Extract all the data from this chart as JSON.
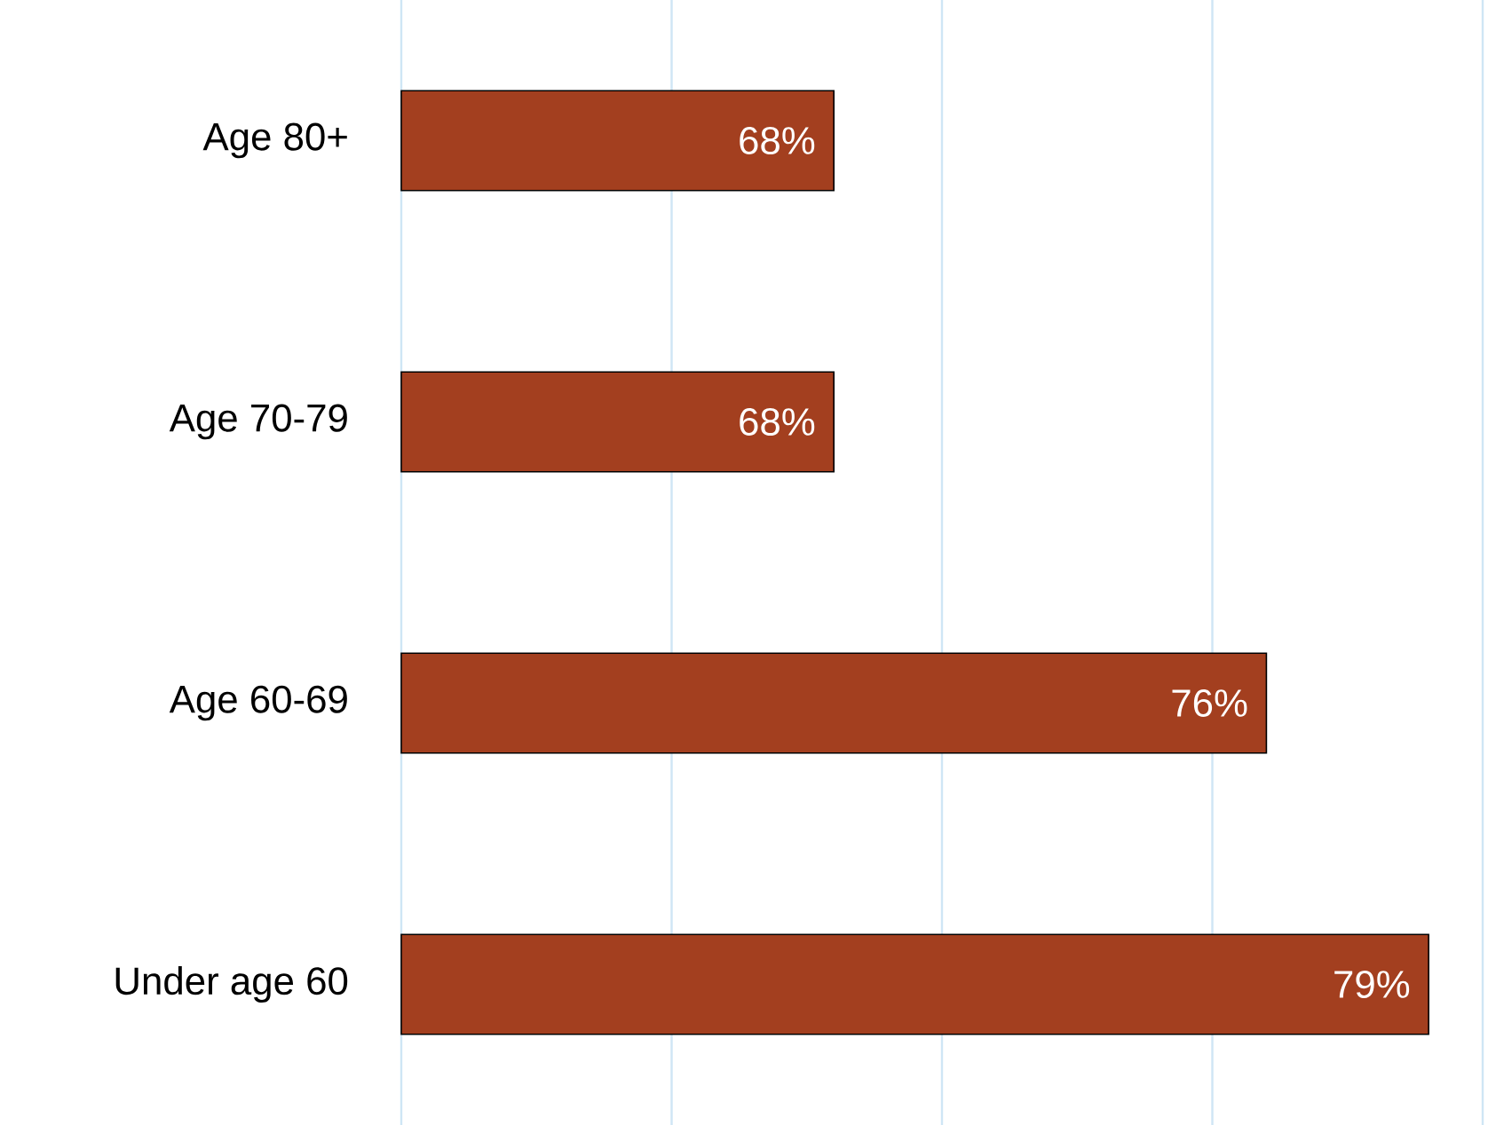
{
  "chart_data": {
    "type": "bar",
    "orientation": "horizontal",
    "categories": [
      "Age 80+",
      "Age 70-79",
      "Age 60-69",
      "Under age 60"
    ],
    "values": [
      68,
      68,
      76,
      79
    ],
    "value_labels": [
      "68%",
      "68%",
      "76%",
      "79%"
    ],
    "color": "#a33f1f",
    "xlim": [
      60,
      80
    ],
    "xticks": [
      {
        "value": 60,
        "label": null
      },
      {
        "value": 65,
        "label": null
      },
      {
        "value": 70,
        "label": null
      },
      {
        "value": 75,
        "label": null
      },
      {
        "value": 80,
        "label": null
      }
    ],
    "tick_labels": "y",
    "grid": "x"
  }
}
